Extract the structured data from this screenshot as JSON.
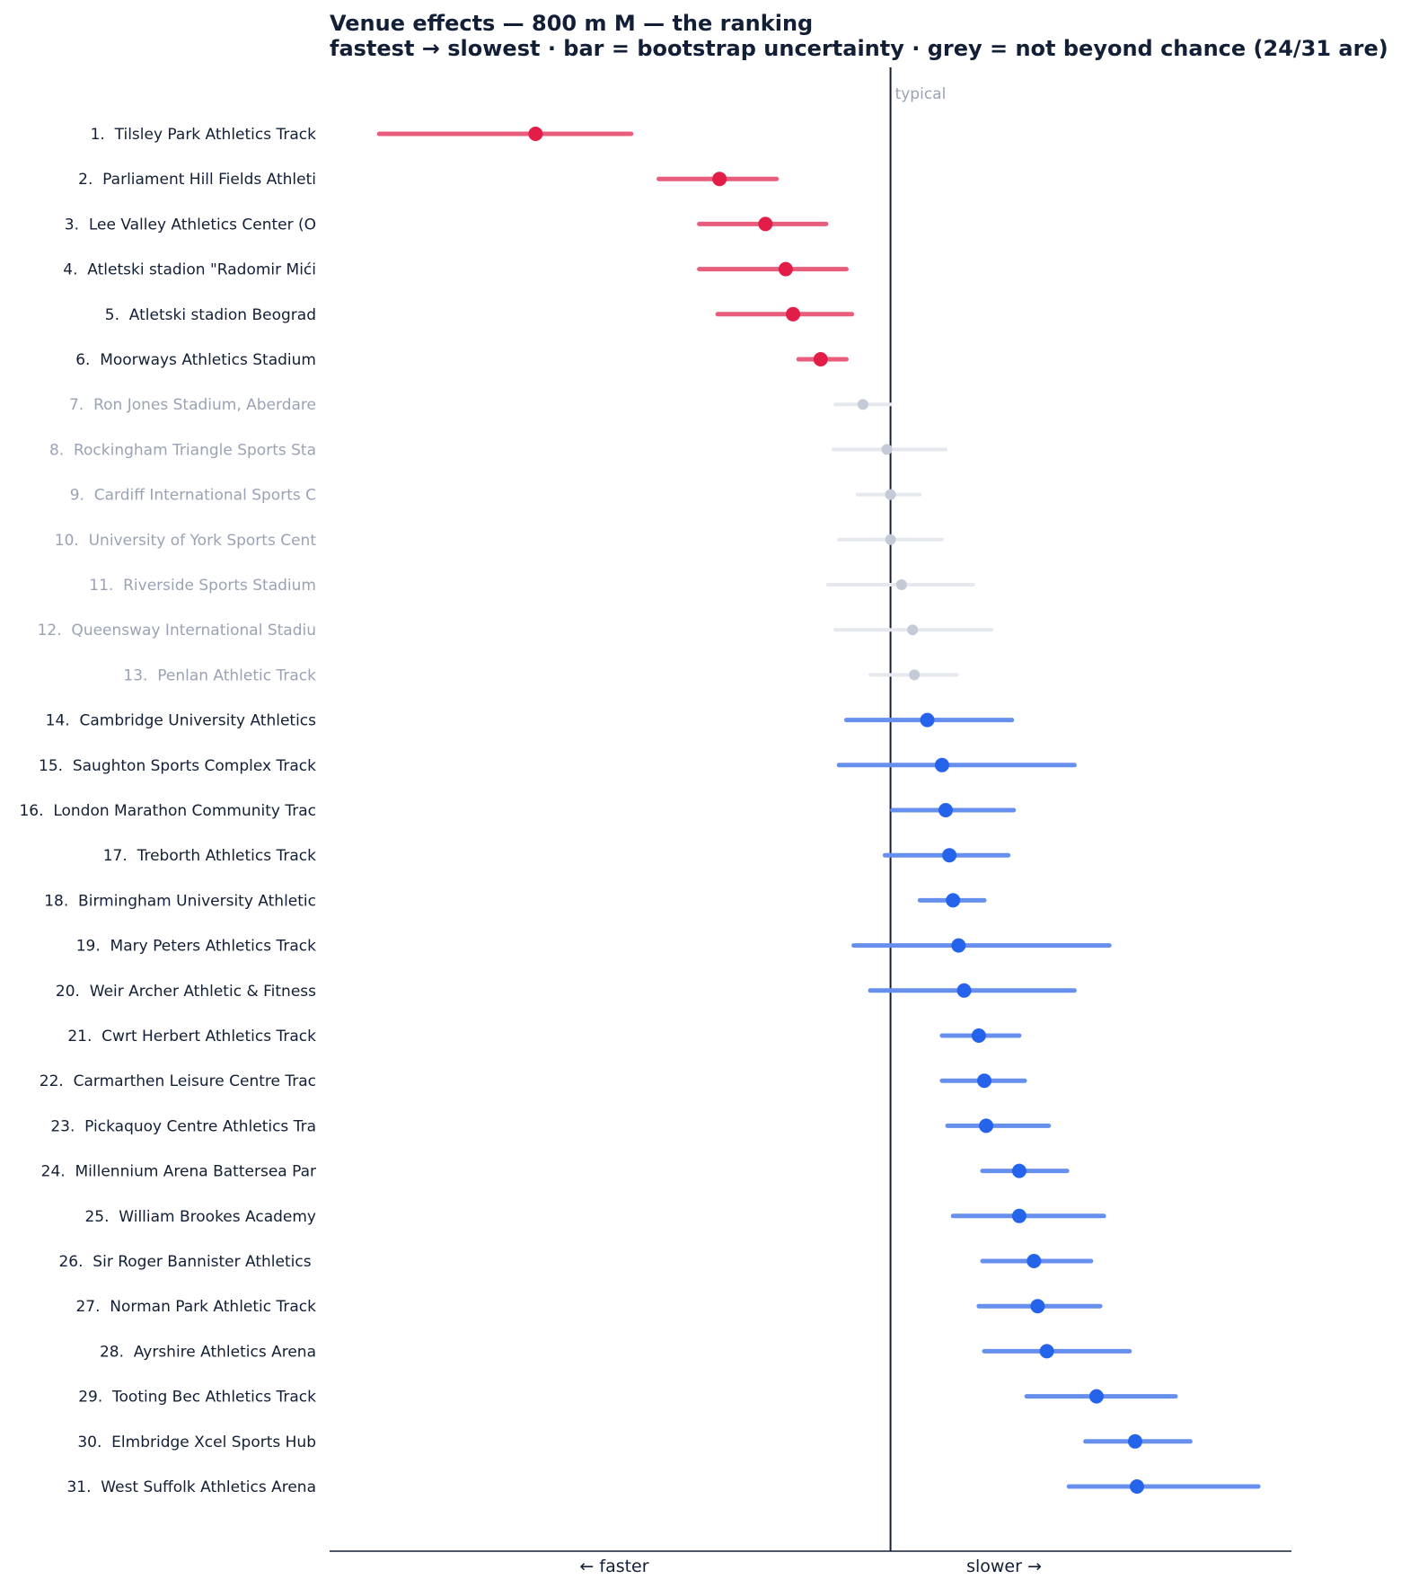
{
  "chart_data": {
    "type": "scatter",
    "title": "Venue effects — 800 m M — the ranking",
    "subtitle": "fastest → slowest · bar = bootstrap uncertainty · grey = not beyond chance (24/31 are)",
    "xlabel_left": "←  faster",
    "xlabel_right": "slower  →",
    "reference_label": "typical",
    "reference_value": 0,
    "xlim": [
      -0.305,
      0.218
    ],
    "colors": {
      "faster": "#e11d48",
      "faster_bar": "#e85c7c",
      "slower": "#2563eb",
      "slower_bar": "#6790ee",
      "neutral": "#c4cad6",
      "neutral_bar": "#e5e8ee",
      "neutral_text": "#9aa3b5",
      "text": "#131f36"
    },
    "venues": [
      {
        "label": "1.  Tilsley Park Athletics Track",
        "estimate": -0.193,
        "low": -0.278,
        "high": -0.141,
        "group": "faster"
      },
      {
        "label": "2.  Parliament Hill Fields Athleti",
        "estimate": -0.093,
        "low": -0.126,
        "high": -0.062,
        "group": "faster"
      },
      {
        "label": "3.  Lee Valley Athletics Center (O",
        "estimate": -0.068,
        "low": -0.104,
        "high": -0.035,
        "group": "faster"
      },
      {
        "label": "4.  Atletski stadion \"Radomir Mići",
        "estimate": -0.057,
        "low": -0.104,
        "high": -0.024,
        "group": "faster"
      },
      {
        "label": "5.  Atletski stadion Beograd",
        "estimate": -0.053,
        "low": -0.094,
        "high": -0.021,
        "group": "faster"
      },
      {
        "label": "6.  Moorways Athletics Stadium",
        "estimate": -0.038,
        "low": -0.05,
        "high": -0.024,
        "group": "faster"
      },
      {
        "label": "7.  Ron Jones Stadium, Aberdare",
        "estimate": -0.015,
        "low": -0.03,
        "high": 0.0,
        "group": "neutral"
      },
      {
        "label": "8.  Rockingham Triangle Sports Sta",
        "estimate": -0.002,
        "low": -0.031,
        "high": 0.03,
        "group": "neutral"
      },
      {
        "label": "9.  Cardiff International Sports C",
        "estimate": 0.0,
        "low": -0.018,
        "high": 0.016,
        "group": "neutral"
      },
      {
        "label": "10.  University of York Sports Cent",
        "estimate": 0.0,
        "low": -0.028,
        "high": 0.028,
        "group": "neutral"
      },
      {
        "label": "11.  Riverside Sports Stadium",
        "estimate": 0.006,
        "low": -0.034,
        "high": 0.045,
        "group": "neutral"
      },
      {
        "label": "12.  Queensway International Stadiu",
        "estimate": 0.012,
        "low": -0.03,
        "high": 0.055,
        "group": "neutral"
      },
      {
        "label": "13.  Penlan Athletic Track",
        "estimate": 0.013,
        "low": -0.011,
        "high": 0.036,
        "group": "neutral"
      },
      {
        "label": "14.  Cambridge University Athletics",
        "estimate": 0.02,
        "low": -0.024,
        "high": 0.066,
        "group": "slower"
      },
      {
        "label": "15.  Saughton Sports Complex Track",
        "estimate": 0.028,
        "low": -0.028,
        "high": 0.1,
        "group": "slower"
      },
      {
        "label": "16.  London Marathon Community Trac",
        "estimate": 0.03,
        "low": 0.001,
        "high": 0.067,
        "group": "slower"
      },
      {
        "label": "17.  Treborth Athletics Track",
        "estimate": 0.032,
        "low": -0.003,
        "high": 0.064,
        "group": "slower"
      },
      {
        "label": "18.  Birmingham University Athletic",
        "estimate": 0.034,
        "low": 0.016,
        "high": 0.051,
        "group": "slower"
      },
      {
        "label": "19.  Mary Peters Athletics Track",
        "estimate": 0.037,
        "low": -0.02,
        "high": 0.119,
        "group": "slower"
      },
      {
        "label": "20.  Weir Archer Athletic & Fitness",
        "estimate": 0.04,
        "low": -0.011,
        "high": 0.1,
        "group": "slower"
      },
      {
        "label": "21.  Cwrt Herbert Athletics Track",
        "estimate": 0.048,
        "low": 0.028,
        "high": 0.07,
        "group": "slower"
      },
      {
        "label": "22.  Carmarthen Leisure Centre Trac",
        "estimate": 0.051,
        "low": 0.028,
        "high": 0.073,
        "group": "slower"
      },
      {
        "label": "23.  Pickaquoy Centre Athletics Tra",
        "estimate": 0.052,
        "low": 0.031,
        "high": 0.086,
        "group": "slower"
      },
      {
        "label": "24.  Millennium Arena Battersea Par",
        "estimate": 0.07,
        "low": 0.05,
        "high": 0.096,
        "group": "slower"
      },
      {
        "label": "25.  William Brookes Academy",
        "estimate": 0.07,
        "low": 0.034,
        "high": 0.116,
        "group": "slower"
      },
      {
        "label": "26.  Sir Roger Bannister Athletics ",
        "estimate": 0.078,
        "low": 0.05,
        "high": 0.109,
        "group": "slower"
      },
      {
        "label": "27.  Norman Park Athletic Track",
        "estimate": 0.08,
        "low": 0.048,
        "high": 0.114,
        "group": "slower"
      },
      {
        "label": "28.  Ayrshire Athletics Arena",
        "estimate": 0.085,
        "low": 0.051,
        "high": 0.13,
        "group": "slower"
      },
      {
        "label": "29.  Tooting Bec Athletics Track",
        "estimate": 0.112,
        "low": 0.074,
        "high": 0.155,
        "group": "slower"
      },
      {
        "label": "30.  Elmbridge Xcel Sports Hub",
        "estimate": 0.133,
        "low": 0.106,
        "high": 0.163,
        "group": "slower"
      },
      {
        "label": "31.  West Suffolk Athletics Arena",
        "estimate": 0.134,
        "low": 0.097,
        "high": 0.2,
        "group": "slower"
      }
    ]
  }
}
